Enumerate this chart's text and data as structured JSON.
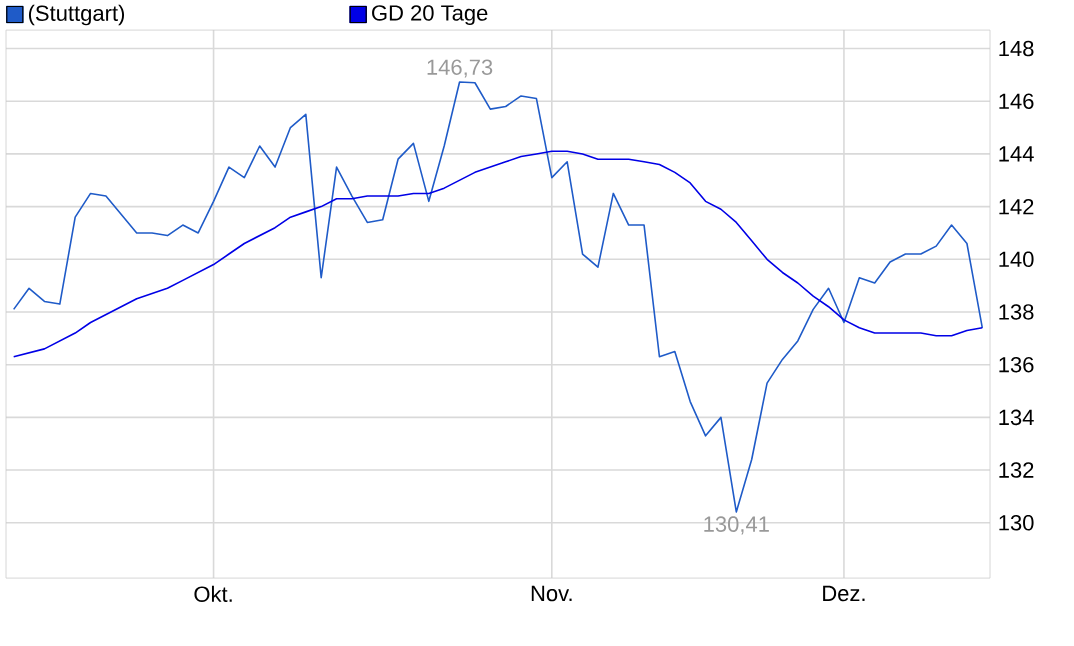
{
  "chart_data": {
    "type": "line",
    "categories": [
      null,
      null,
      null,
      null,
      null,
      null,
      null,
      null,
      null,
      null,
      null,
      null,
      null,
      "Okt.",
      null,
      null,
      null,
      null,
      null,
      null,
      null,
      null,
      null,
      null,
      null,
      null,
      null,
      null,
      null,
      null,
      null,
      null,
      null,
      null,
      null,
      "Nov.",
      null,
      null,
      null,
      null,
      null,
      null,
      null,
      null,
      null,
      null,
      null,
      null,
      null,
      null,
      null,
      null,
      null,
      null,
      "Dez.",
      null,
      null,
      null,
      null,
      null,
      null,
      null,
      null,
      null
    ],
    "series": [
      {
        "name": "(Stuttgart)",
        "color": "#1f5bc8",
        "values": [
          138.1,
          138.9,
          138.4,
          138.3,
          141.6,
          142.5,
          142.4,
          141.7,
          141.0,
          141.0,
          140.9,
          141.3,
          141.0,
          142.2,
          143.5,
          143.1,
          144.3,
          143.5,
          145.0,
          145.5,
          139.3,
          143.5,
          142.4,
          141.4,
          141.5,
          143.8,
          144.4,
          142.2,
          144.3,
          146.73,
          146.7,
          145.7,
          145.8,
          146.2,
          146.1,
          143.1,
          143.7,
          140.2,
          139.7,
          142.5,
          141.3,
          141.3,
          136.3,
          136.5,
          134.6,
          133.3,
          134.0,
          130.41,
          132.4,
          135.3,
          136.2,
          136.9,
          138.1,
          138.9,
          137.6,
          139.3,
          139.1,
          139.9,
          140.2,
          140.2,
          140.5,
          141.3,
          140.6,
          137.4
        ]
      },
      {
        "name": "GD 20 Tage",
        "color": "#0000e6",
        "values": [
          136.3,
          136.45,
          136.6,
          136.9,
          137.2,
          137.6,
          137.9,
          138.2,
          138.5,
          138.7,
          138.9,
          139.2,
          139.5,
          139.8,
          140.2,
          140.6,
          140.9,
          141.2,
          141.6,
          141.8,
          142.0,
          142.3,
          142.3,
          142.4,
          142.4,
          142.4,
          142.5,
          142.5,
          142.7,
          143.0,
          143.3,
          143.5,
          143.7,
          143.9,
          144.0,
          144.1,
          144.1,
          144.0,
          143.8,
          143.8,
          143.8,
          143.7,
          143.6,
          143.3,
          142.9,
          142.2,
          141.9,
          141.4,
          140.7,
          140.0,
          139.5,
          139.1,
          138.6,
          138.2,
          137.7,
          137.4,
          137.2,
          137.2,
          137.2,
          137.2,
          137.1,
          137.1,
          137.3,
          137.4
        ]
      }
    ],
    "ylim": [
      127.9,
      148.7
    ],
    "yticks": [
      130,
      132,
      134,
      136,
      138,
      140,
      142,
      144,
      146,
      148
    ],
    "annotations": [
      {
        "text": "146,73",
        "y": 146.73
      },
      {
        "text": "130,41",
        "y": 130.41
      }
    ],
    "grid": true,
    "legend": "top left"
  }
}
